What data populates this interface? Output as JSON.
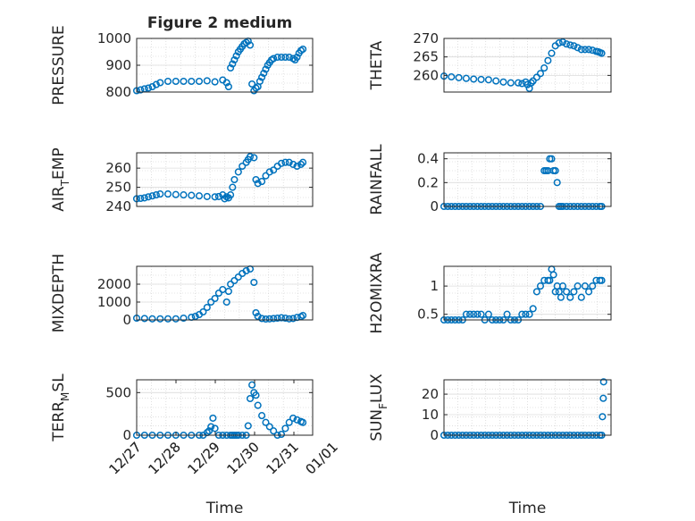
{
  "figure": {
    "title": "Figure 2 medium",
    "marker_color": "#0072BD",
    "grid_color": "#cccccc",
    "axis_color": "#262626"
  },
  "chart_data": [
    {
      "type": "scatter",
      "name": "pressure",
      "ylabel": "PRESSURE",
      "ylim": [
        800,
        1000
      ],
      "yticks": [
        800,
        900,
        1000
      ],
      "yticklabels": [
        "800",
        "900",
        "1000"
      ],
      "xlim": [
        0,
        4.5
      ],
      "xticks": [],
      "x": [
        0,
        0.1,
        0.2,
        0.3,
        0.4,
        0.5,
        0.6,
        0.8,
        1.0,
        1.2,
        1.4,
        1.6,
        1.8,
        2.0,
        2.2,
        2.3,
        2.35,
        2.4,
        2.45,
        2.5,
        2.55,
        2.6,
        2.65,
        2.7,
        2.75,
        2.8,
        2.85,
        2.9,
        2.95,
        3.0,
        3.05,
        3.1,
        3.15,
        3.2,
        3.25,
        3.3,
        3.35,
        3.4,
        3.45,
        3.5,
        3.6,
        3.7,
        3.8,
        3.9,
        4.0,
        4.05,
        4.1,
        4.15,
        4.2,
        4.25
      ],
      "y": [
        805,
        808,
        812,
        815,
        820,
        828,
        835,
        840,
        840,
        840,
        840,
        840,
        842,
        838,
        845,
        835,
        820,
        890,
        905,
        920,
        935,
        950,
        960,
        970,
        980,
        985,
        990,
        975,
        830,
        805,
        815,
        820,
        840,
        855,
        870,
        885,
        900,
        910,
        920,
        925,
        930,
        930,
        930,
        930,
        925,
        920,
        930,
        945,
        955,
        960
      ]
    },
    {
      "type": "scatter",
      "name": "theta",
      "ylabel": "THETA",
      "ylim": [
        255.5,
        270
      ],
      "yticks": [
        260,
        265,
        270
      ],
      "yticklabels": [
        "260",
        "265",
        "270"
      ],
      "xlim": [
        0,
        4.5
      ],
      "xticks": [],
      "x": [
        0,
        0.2,
        0.4,
        0.6,
        0.8,
        1.0,
        1.2,
        1.4,
        1.6,
        1.8,
        2.0,
        2.1,
        2.2,
        2.25,
        2.3,
        2.35,
        2.4,
        2.5,
        2.6,
        2.7,
        2.8,
        2.9,
        3.0,
        3.1,
        3.2,
        3.3,
        3.4,
        3.5,
        3.6,
        3.7,
        3.8,
        3.9,
        4.0,
        4.1,
        4.15,
        4.2,
        4.25
      ],
      "y": [
        259.8,
        259.6,
        259.4,
        259.2,
        259.0,
        258.9,
        258.8,
        258.5,
        258.2,
        258.0,
        258.0,
        257.8,
        258.2,
        257.5,
        256.5,
        258.0,
        258.5,
        259.5,
        260.5,
        262.0,
        264.0,
        266.0,
        268.0,
        268.8,
        269.0,
        268.5,
        268.2,
        268.0,
        267.5,
        267.0,
        267.0,
        267.0,
        266.8,
        266.5,
        266.4,
        266.2,
        266.0
      ]
    },
    {
      "type": "scatter",
      "name": "air_temp",
      "ylabel": "AIR_TEMP",
      "ylabel_parts": [
        "AIR",
        "T",
        "EMP"
      ],
      "ylim": [
        240,
        268
      ],
      "yticks": [
        240,
        250,
        260
      ],
      "yticklabels": [
        "240",
        "250",
        "260"
      ],
      "xlim": [
        0,
        4.5
      ],
      "xticks": [],
      "x": [
        0,
        0.1,
        0.2,
        0.3,
        0.4,
        0.5,
        0.6,
        0.8,
        1.0,
        1.2,
        1.4,
        1.6,
        1.8,
        2.0,
        2.1,
        2.2,
        2.25,
        2.3,
        2.35,
        2.4,
        2.45,
        2.5,
        2.6,
        2.7,
        2.8,
        2.85,
        2.9,
        3.0,
        3.05,
        3.1,
        3.2,
        3.3,
        3.4,
        3.5,
        3.6,
        3.7,
        3.8,
        3.9,
        4.0,
        4.1,
        4.2,
        4.25
      ],
      "y": [
        244,
        244.2,
        244.5,
        245,
        245.5,
        246,
        246.5,
        246.5,
        246.2,
        246,
        245.8,
        245.5,
        245.2,
        245,
        245.2,
        246,
        244,
        245,
        244.5,
        246,
        250,
        254,
        258,
        261,
        263,
        264.5,
        266,
        265.5,
        254,
        252,
        253,
        256,
        258,
        259,
        261,
        262.5,
        263,
        263,
        262,
        261,
        262,
        263
      ]
    },
    {
      "type": "scatter",
      "name": "rainfall",
      "ylabel": "RAINFALL",
      "ylim": [
        0,
        0.45
      ],
      "yticks": [
        0,
        0.2,
        0.4
      ],
      "yticklabels": [
        "0",
        "0.2",
        "0.4"
      ],
      "xlim": [
        0,
        4.5
      ],
      "xticks": [],
      "x": [
        0,
        0.1,
        0.2,
        0.3,
        0.4,
        0.5,
        0.6,
        0.7,
        0.8,
        0.9,
        1.0,
        1.1,
        1.2,
        1.3,
        1.4,
        1.5,
        1.6,
        1.7,
        1.8,
        1.9,
        2.0,
        2.1,
        2.2,
        2.3,
        2.4,
        2.5,
        2.6,
        2.7,
        2.75,
        2.8,
        2.85,
        2.9,
        2.95,
        3.0,
        3.05,
        3.1,
        3.15,
        3.2,
        3.3,
        3.4,
        3.5,
        3.6,
        3.7,
        3.8,
        3.9,
        4.0,
        4.1,
        4.2,
        4.25
      ],
      "y": [
        0,
        0,
        0,
        0,
        0,
        0,
        0,
        0,
        0,
        0,
        0,
        0,
        0,
        0,
        0,
        0,
        0,
        0,
        0,
        0,
        0,
        0,
        0,
        0,
        0,
        0,
        0,
        0.3,
        0.3,
        0.3,
        0.4,
        0.4,
        0.3,
        0.3,
        0.2,
        0,
        0,
        0,
        0,
        0,
        0,
        0,
        0,
        0,
        0,
        0,
        0,
        0,
        0
      ]
    },
    {
      "type": "scatter",
      "name": "mixdepth",
      "ylabel": "MIXDEPTH",
      "ylim": [
        0,
        3000
      ],
      "yticks": [
        0,
        1000,
        2000
      ],
      "yticklabels": [
        "0",
        "1000",
        "2000"
      ],
      "xlim": [
        0,
        4.5
      ],
      "xticks": [],
      "x": [
        0,
        0.2,
        0.4,
        0.6,
        0.8,
        1.0,
        1.2,
        1.4,
        1.5,
        1.6,
        1.7,
        1.8,
        1.9,
        2.0,
        2.1,
        2.2,
        2.3,
        2.35,
        2.4,
        2.5,
        2.6,
        2.7,
        2.8,
        2.9,
        3.0,
        3.05,
        3.1,
        3.2,
        3.3,
        3.4,
        3.5,
        3.6,
        3.7,
        3.8,
        3.9,
        4.0,
        4.1,
        4.2,
        4.25
      ],
      "y": [
        100,
        80,
        60,
        60,
        60,
        60,
        100,
        150,
        200,
        300,
        450,
        700,
        1000,
        1200,
        1500,
        1700,
        1000,
        1600,
        2000,
        2200,
        2400,
        2600,
        2750,
        2850,
        2100,
        400,
        200,
        80,
        50,
        60,
        80,
        100,
        120,
        100,
        60,
        80,
        140,
        180,
        250
      ]
    },
    {
      "type": "scatter",
      "name": "h2omixra",
      "ylabel": "H2OMIXRA",
      "ylim": [
        0.4,
        1.35
      ],
      "yticks": [
        0.5,
        1
      ],
      "yticklabels": [
        "0.5",
        "1"
      ],
      "xlim": [
        0,
        4.5
      ],
      "xticks": [],
      "x": [
        0,
        0.1,
        0.2,
        0.3,
        0.4,
        0.5,
        0.6,
        0.7,
        0.8,
        0.9,
        1.0,
        1.1,
        1.2,
        1.3,
        1.4,
        1.5,
        1.6,
        1.7,
        1.8,
        1.9,
        2.0,
        2.1,
        2.2,
        2.3,
        2.4,
        2.5,
        2.6,
        2.7,
        2.8,
        2.85,
        2.9,
        2.95,
        3.0,
        3.05,
        3.1,
        3.15,
        3.2,
        3.3,
        3.4,
        3.5,
        3.6,
        3.7,
        3.8,
        3.9,
        4.0,
        4.1,
        4.2,
        4.25
      ],
      "y": [
        0.4,
        0.4,
        0.4,
        0.4,
        0.4,
        0.4,
        0.5,
        0.5,
        0.5,
        0.5,
        0.5,
        0.4,
        0.5,
        0.4,
        0.4,
        0.4,
        0.4,
        0.5,
        0.4,
        0.4,
        0.4,
        0.5,
        0.5,
        0.5,
        0.6,
        0.9,
        1.0,
        1.1,
        1.1,
        1.1,
        1.3,
        1.2,
        0.9,
        1.0,
        0.9,
        0.8,
        1.0,
        0.9,
        0.8,
        0.9,
        1.0,
        0.8,
        1.0,
        0.9,
        1.0,
        1.1,
        1.1,
        1.1
      ]
    },
    {
      "type": "scatter",
      "name": "terr_msl",
      "ylabel": "TERR_MSL",
      "ylabel_parts": [
        "TERR",
        "M",
        "SL"
      ],
      "ylim": [
        0,
        650
      ],
      "yticks": [
        0,
        500
      ],
      "yticklabels": [
        "0",
        "500"
      ],
      "xlim": [
        0,
        4.5
      ],
      "xticks": [
        0,
        1,
        2,
        3,
        4,
        5
      ],
      "xticklabels": [
        "12/27",
        "12/28",
        "12/29",
        "12/30",
        "12/31",
        "01/01"
      ],
      "xlabel": "Time",
      "x": [
        0,
        0.2,
        0.4,
        0.6,
        0.8,
        1.0,
        1.2,
        1.4,
        1.6,
        1.7,
        1.8,
        1.85,
        1.9,
        1.95,
        2.0,
        2.1,
        2.2,
        2.3,
        2.4,
        2.45,
        2.5,
        2.55,
        2.6,
        2.7,
        2.8,
        2.85,
        2.9,
        2.95,
        3.0,
        3.05,
        3.1,
        3.2,
        3.3,
        3.4,
        3.5,
        3.6,
        3.7,
        3.8,
        3.9,
        4.0,
        4.1,
        4.2,
        4.25
      ],
      "y": [
        0,
        0,
        0,
        0,
        0,
        0,
        0,
        0,
        0,
        0,
        30,
        50,
        100,
        200,
        80,
        0,
        0,
        0,
        0,
        0,
        0,
        0,
        0,
        0,
        0,
        110,
        430,
        590,
        500,
        470,
        350,
        230,
        150,
        100,
        50,
        0,
        10,
        80,
        150,
        200,
        180,
        160,
        150
      ]
    },
    {
      "type": "scatter",
      "name": "sun_flux",
      "ylabel": "SUN_FLUX",
      "ylabel_parts": [
        "SUN",
        "F",
        "LUX"
      ],
      "ylim": [
        0,
        27
      ],
      "yticks": [
        0,
        10,
        20
      ],
      "yticklabels": [
        "0",
        "10",
        "20"
      ],
      "xlim": [
        0,
        4.5
      ],
      "xticks": [
        0,
        1,
        2,
        3,
        4,
        5
      ],
      "xticklabels": [
        "12/27",
        "12/28",
        "12/29",
        "12/30",
        "12/31",
        "01/01"
      ],
      "xlabel": "Time",
      "x": [
        0,
        0.1,
        0.2,
        0.3,
        0.4,
        0.5,
        0.6,
        0.7,
        0.8,
        0.9,
        1.0,
        1.1,
        1.2,
        1.3,
        1.4,
        1.5,
        1.6,
        1.7,
        1.8,
        1.9,
        2.0,
        2.1,
        2.2,
        2.3,
        2.4,
        2.5,
        2.6,
        2.7,
        2.8,
        2.9,
        3.0,
        3.1,
        3.2,
        3.3,
        3.4,
        3.5,
        3.6,
        3.7,
        3.8,
        3.9,
        4.0,
        4.1,
        4.2,
        4.25,
        4.27,
        4.29,
        4.3
      ],
      "y": [
        0,
        0,
        0,
        0,
        0,
        0,
        0,
        0,
        0,
        0,
        0,
        0,
        0,
        0,
        0,
        0,
        0,
        0,
        0,
        0,
        0,
        0,
        0,
        0,
        0,
        0,
        0,
        0,
        0,
        0,
        0,
        0,
        0,
        0,
        0,
        0,
        0,
        0,
        0,
        0,
        0,
        0,
        0,
        0,
        9,
        18,
        26
      ]
    }
  ]
}
